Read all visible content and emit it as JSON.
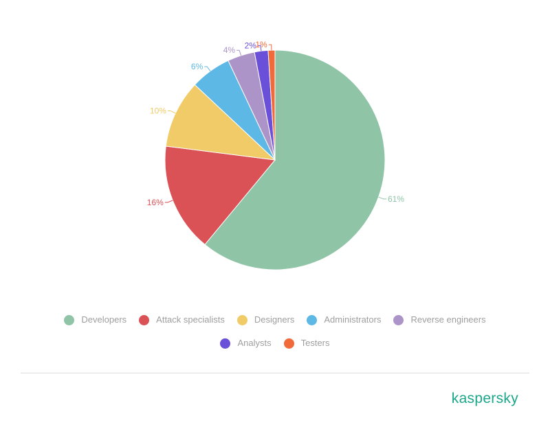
{
  "chart_data": {
    "type": "pie",
    "categories": [
      "Developers",
      "Attack specialists",
      "Designers",
      "Administrators",
      "Reverse engineers",
      "Analysts",
      "Testers"
    ],
    "values": [
      61,
      16,
      10,
      6,
      4,
      2,
      1
    ],
    "labels": [
      "61%",
      "16%",
      "10%",
      "6%",
      "4%",
      "2%",
      "1%"
    ],
    "colors": [
      "#8fc4a7",
      "#da5156",
      "#f0cb67",
      "#5db8e5",
      "#ac94c9",
      "#6a4fd8",
      "#f06a3a"
    ],
    "start_angle_deg": 0,
    "direction": "clockwise",
    "legend_position": "bottom"
  },
  "brand": {
    "logo_text": "kaspersky"
  }
}
